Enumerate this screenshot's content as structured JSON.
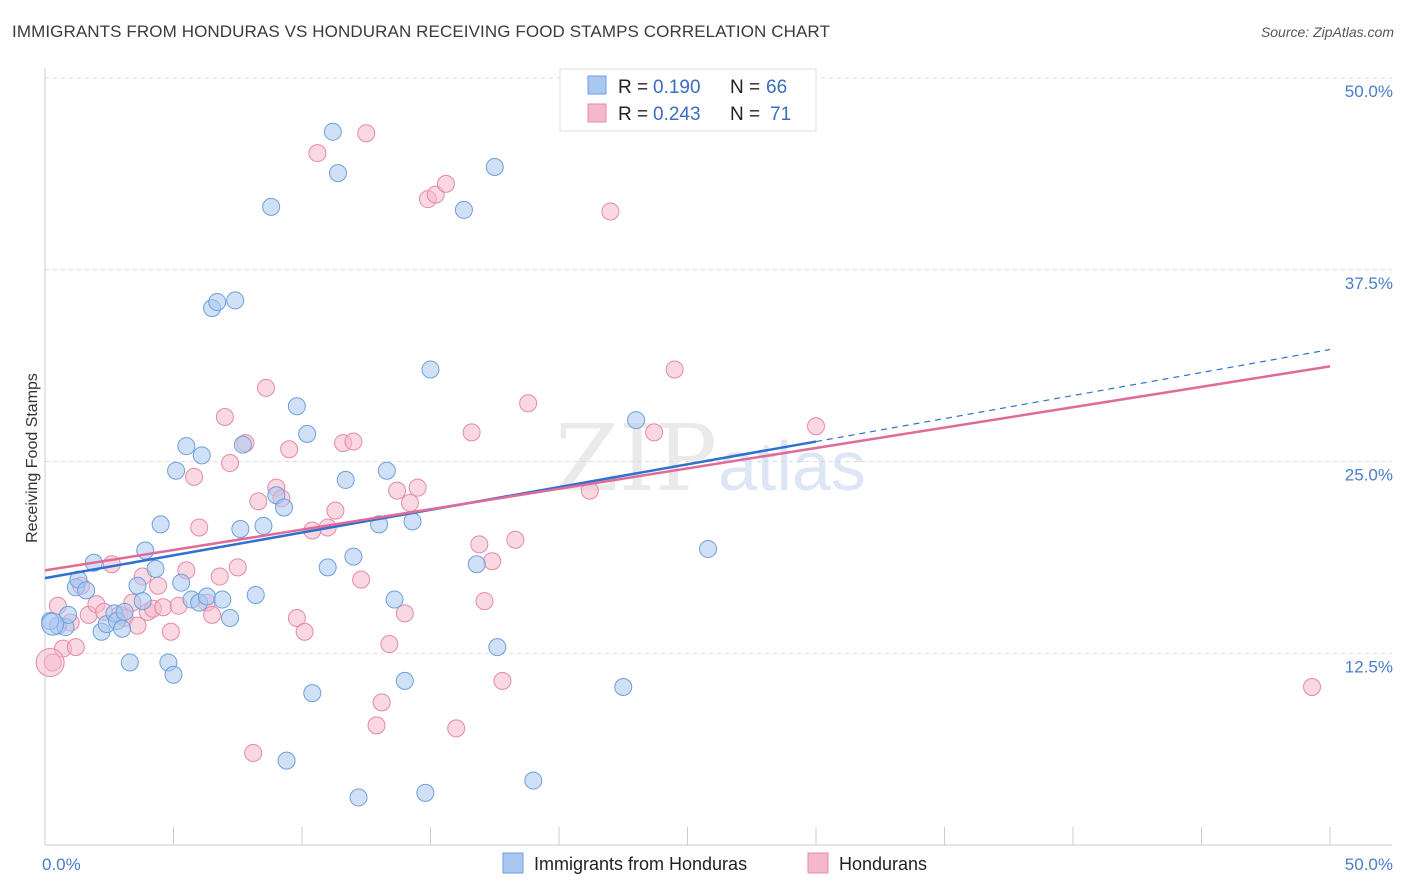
{
  "title": "IMMIGRANTS FROM HONDURAS VS HONDURAN RECEIVING FOOD STAMPS CORRELATION CHART",
  "source": "Source: ZipAtlas.com",
  "watermark": {
    "zip": "ZIP",
    "atlas": "atlas"
  },
  "legend_top": [
    {
      "r_label": "R =",
      "r_value": "0.190",
      "n_label": "N =",
      "n_value": "66",
      "color": "#a9c8f0"
    },
    {
      "r_label": "R =",
      "r_value": "0.243",
      "n_label": "N =",
      "n_value": "71",
      "color": "#f5b8cb"
    }
  ],
  "chart_data": {
    "type": "scatter",
    "title": "IMMIGRANTS FROM HONDURAS VS HONDURAN RECEIVING FOOD STAMPS CORRELATION CHART",
    "xlabel": "",
    "ylabel": "Receiving Food Stamps",
    "xlim": [
      0,
      50
    ],
    "ylim": [
      0,
      50
    ],
    "x_tick_labels": [
      "0.0%",
      "50.0%"
    ],
    "y_ticks": [
      12.5,
      25.0,
      37.5,
      50.0
    ],
    "y_tick_labels": [
      "12.5%",
      "25.0%",
      "37.5%",
      "50.0%"
    ],
    "grid": true,
    "legend_position": "top-center",
    "series": [
      {
        "name": "Immigrants from Honduras",
        "color": "#a9c8f0",
        "stroke": "#6f9fdc",
        "trend_color": "#3070d0",
        "trend": {
          "x0": 0,
          "y0": 17.4,
          "x1": 30,
          "y1": 26.3,
          "dash_x1": 50,
          "dash_y1": 32.3
        },
        "points": [
          [
            0.5,
            14.3
          ],
          [
            0.8,
            14.2
          ],
          [
            0.9,
            15.0
          ],
          [
            1.2,
            16.8
          ],
          [
            1.3,
            17.3
          ],
          [
            1.6,
            16.6
          ],
          [
            1.9,
            18.4
          ],
          [
            2.2,
            13.9
          ],
          [
            2.4,
            14.4
          ],
          [
            2.7,
            15.1
          ],
          [
            2.8,
            14.6
          ],
          [
            3.0,
            14.1
          ],
          [
            3.1,
            15.2
          ],
          [
            3.3,
            11.9
          ],
          [
            3.6,
            16.9
          ],
          [
            3.8,
            15.9
          ],
          [
            3.9,
            19.2
          ],
          [
            4.3,
            18.0
          ],
          [
            4.5,
            20.9
          ],
          [
            4.8,
            11.9
          ],
          [
            5.0,
            11.1
          ],
          [
            5.1,
            24.4
          ],
          [
            5.3,
            17.1
          ],
          [
            5.5,
            26.0
          ],
          [
            5.7,
            16.0
          ],
          [
            6.0,
            15.8
          ],
          [
            6.1,
            25.4
          ],
          [
            6.3,
            16.2
          ],
          [
            6.5,
            35.0
          ],
          [
            6.7,
            35.4
          ],
          [
            6.9,
            16.0
          ],
          [
            7.2,
            14.8
          ],
          [
            7.4,
            35.5
          ],
          [
            7.6,
            20.6
          ],
          [
            7.7,
            26.1
          ],
          [
            8.2,
            16.3
          ],
          [
            8.5,
            20.8
          ],
          [
            8.8,
            41.6
          ],
          [
            9.0,
            22.8
          ],
          [
            9.3,
            22.0
          ],
          [
            9.4,
            5.5
          ],
          [
            9.8,
            28.6
          ],
          [
            10.2,
            26.8
          ],
          [
            10.4,
            9.9
          ],
          [
            11.0,
            18.1
          ],
          [
            11.2,
            46.5
          ],
          [
            11.4,
            43.8
          ],
          [
            11.7,
            23.8
          ],
          [
            12.0,
            18.8
          ],
          [
            12.2,
            3.1
          ],
          [
            13.0,
            20.9
          ],
          [
            13.3,
            24.4
          ],
          [
            13.6,
            16.0
          ],
          [
            14.0,
            10.7
          ],
          [
            14.3,
            21.1
          ],
          [
            14.8,
            3.4
          ],
          [
            15.0,
            31.0
          ],
          [
            16.3,
            41.4
          ],
          [
            16.8,
            18.3
          ],
          [
            17.5,
            44.2
          ],
          [
            17.6,
            12.9
          ],
          [
            19.0,
            4.2
          ],
          [
            22.5,
            10.3
          ],
          [
            23.0,
            27.7
          ],
          [
            25.8,
            19.3
          ],
          [
            0.2,
            14.6
          ]
        ]
      },
      {
        "name": "Hondurans",
        "color": "#f5b8cb",
        "stroke": "#e58aa8",
        "trend_color": "#e06a98",
        "trend": {
          "x0": 0,
          "y0": 17.9,
          "x1": 50,
          "y1": 31.2
        },
        "points": [
          [
            0.3,
            11.9
          ],
          [
            0.5,
            15.6
          ],
          [
            0.7,
            12.8
          ],
          [
            1.0,
            14.5
          ],
          [
            1.2,
            12.9
          ],
          [
            1.4,
            16.9
          ],
          [
            1.7,
            15.0
          ],
          [
            2.0,
            15.7
          ],
          [
            2.3,
            15.2
          ],
          [
            2.6,
            18.3
          ],
          [
            2.9,
            15.0
          ],
          [
            3.1,
            14.8
          ],
          [
            3.4,
            15.8
          ],
          [
            3.6,
            14.3
          ],
          [
            3.8,
            17.5
          ],
          [
            4.0,
            15.2
          ],
          [
            4.2,
            15.4
          ],
          [
            4.4,
            16.9
          ],
          [
            4.6,
            15.5
          ],
          [
            4.9,
            13.9
          ],
          [
            5.2,
            15.6
          ],
          [
            5.5,
            17.9
          ],
          [
            5.8,
            24.0
          ],
          [
            6.0,
            20.7
          ],
          [
            6.3,
            15.8
          ],
          [
            6.5,
            15.0
          ],
          [
            6.8,
            17.5
          ],
          [
            7.0,
            27.9
          ],
          [
            7.2,
            24.9
          ],
          [
            7.5,
            18.1
          ],
          [
            7.8,
            26.2
          ],
          [
            8.1,
            6.0
          ],
          [
            8.3,
            22.4
          ],
          [
            8.6,
            29.8
          ],
          [
            9.0,
            23.3
          ],
          [
            9.2,
            22.6
          ],
          [
            9.5,
            25.8
          ],
          [
            9.8,
            14.8
          ],
          [
            10.1,
            13.9
          ],
          [
            10.4,
            20.5
          ],
          [
            10.6,
            45.1
          ],
          [
            11.0,
            20.7
          ],
          [
            11.3,
            21.8
          ],
          [
            11.6,
            26.2
          ],
          [
            12.0,
            26.3
          ],
          [
            12.3,
            17.3
          ],
          [
            12.5,
            46.4
          ],
          [
            12.9,
            7.8
          ],
          [
            13.1,
            9.3
          ],
          [
            13.4,
            13.1
          ],
          [
            13.7,
            23.1
          ],
          [
            14.0,
            15.1
          ],
          [
            14.2,
            22.3
          ],
          [
            14.5,
            23.3
          ],
          [
            14.9,
            42.1
          ],
          [
            15.2,
            42.4
          ],
          [
            15.6,
            43.1
          ],
          [
            16.0,
            7.6
          ],
          [
            16.6,
            26.9
          ],
          [
            16.9,
            19.6
          ],
          [
            17.1,
            15.9
          ],
          [
            17.4,
            18.5
          ],
          [
            17.8,
            10.7
          ],
          [
            18.3,
            19.9
          ],
          [
            18.8,
            28.8
          ],
          [
            21.2,
            23.1
          ],
          [
            22.0,
            41.3
          ],
          [
            23.7,
            26.9
          ],
          [
            24.5,
            31.0
          ],
          [
            30.0,
            27.3
          ],
          [
            49.3,
            10.3
          ]
        ]
      }
    ]
  },
  "legend_bottom": [
    {
      "label": "Immigrants from Honduras",
      "color": "#a9c8f0"
    },
    {
      "label": "Hondurans",
      "color": "#f5b8cb"
    }
  ]
}
